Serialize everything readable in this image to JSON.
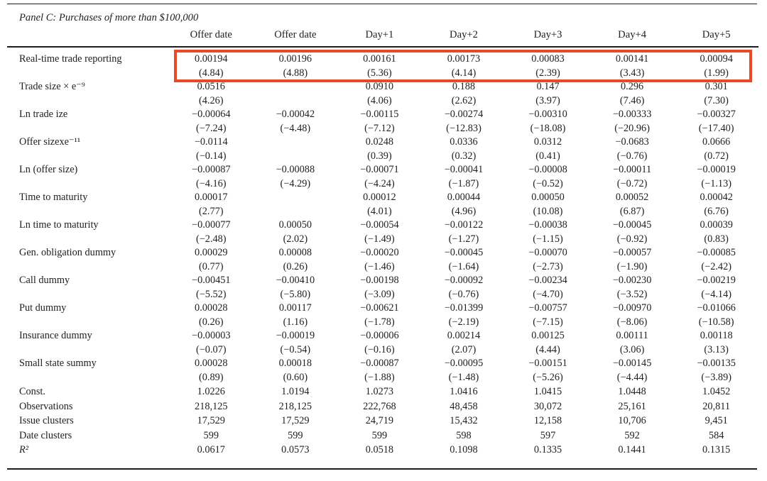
{
  "table": {
    "panel_title": "Panel C: Purchases of more than $100,000",
    "columns": [
      "Offer date",
      "Offer date",
      "Day+1",
      "Day+2",
      "Day+3",
      "Day+4",
      "Day+5"
    ],
    "rows": [
      {
        "label": "Real-time trade reporting",
        "highlight": true,
        "coef": [
          "0.00194",
          "0.00196",
          "0.00161",
          "0.00173",
          "0.00083",
          "0.00141",
          "0.00094"
        ],
        "tstat": [
          "(4.84)",
          "(4.88)",
          "(5.36)",
          "(4.14)",
          "(2.39)",
          "(3.43)",
          "(1.99)"
        ]
      },
      {
        "label": "Trade size × e⁻⁹",
        "coef": [
          "0.0516",
          "",
          "0.0910",
          "0.188",
          "0.147",
          "0.296",
          "0.301"
        ],
        "tstat": [
          "(4.26)",
          "",
          "(4.06)",
          "(2.62)",
          "(3.97)",
          "(7.46)",
          "(7.30)"
        ]
      },
      {
        "label": "Ln trade ize",
        "coef": [
          "−0.00064",
          "−0.00042",
          "−0.00115",
          "−0.00274",
          "−0.00310",
          "−0.00333",
          "−0.00327"
        ],
        "tstat": [
          "(−7.24)",
          "(−4.48)",
          "(−7.12)",
          "(−12.83)",
          "(−18.08)",
          "(−20.96)",
          "(−17.40)"
        ]
      },
      {
        "label": "Offer sizexe⁻¹¹",
        "coef": [
          "−0.0114",
          "",
          "0.0248",
          "0.0336",
          "0.0312",
          "−0.0683",
          "0.0666"
        ],
        "tstat": [
          "(−0.14)",
          "",
          "(0.39)",
          "(0.32)",
          "(0.41)",
          "(−0.76)",
          "(0.72)"
        ]
      },
      {
        "label": "Ln (offer size)",
        "coef": [
          "−0.00087",
          "−0.00088",
          "−0.00071",
          "−0.00041",
          "−0.00008",
          "−0.00011",
          "−0.00019"
        ],
        "tstat": [
          "(−4.16)",
          "(−4.29)",
          "(−4.24)",
          "(−1.87)",
          "(−0.52)",
          "(−0.72)",
          "(−1.13)"
        ]
      },
      {
        "label": "Time to maturity",
        "coef": [
          "0.00017",
          "",
          "0.00012",
          "0.00044",
          "0.00050",
          "0.00052",
          "0.00042"
        ],
        "tstat": [
          "(2.77)",
          "",
          "(4.01)",
          "(4.96)",
          "(10.08)",
          "(6.87)",
          "(6.76)"
        ]
      },
      {
        "label": "Ln time to maturity",
        "coef": [
          "−0.00077",
          "0.00050",
          "−0.00054",
          "−0.00122",
          "−0.00038",
          "−0.00045",
          "0.00039"
        ],
        "tstat": [
          "(−2.48)",
          "(2.02)",
          "(−1.49)",
          "(−1.27)",
          "(−1.15)",
          "(−0.92)",
          "(0.83)"
        ]
      },
      {
        "label": "Gen. obligation dummy",
        "coef": [
          "0.00029",
          "0.00008",
          "−0.00020",
          "−0.00045",
          "−0.00070",
          "−0.00057",
          "−0.00085"
        ],
        "tstat": [
          "(0.77)",
          "(0.26)",
          "(−1.46)",
          "(−1.64)",
          "(−2.73)",
          "(−1.90)",
          "(−2.42)"
        ]
      },
      {
        "label": "Call dummy",
        "coef": [
          "−0.00451",
          "−0.00410",
          "−0.00198",
          "−0.00092",
          "−0.00234",
          "−0.00230",
          "−0.00219"
        ],
        "tstat": [
          "(−5.52)",
          "(−5.80)",
          "(−3.09)",
          "(−0.76)",
          "(−4.70)",
          "(−3.52)",
          "(−4.14)"
        ]
      },
      {
        "label": "Put dummy",
        "coef": [
          "0.00028",
          "0.00117",
          "−0.00621",
          "−0.01399",
          "−0.00757",
          "−0.00970",
          "−0.01066"
        ],
        "tstat": [
          "(0.26)",
          "(1.16)",
          "(−1.78)",
          "(−2.19)",
          "(−7.15)",
          "(−8.06)",
          "(−10.58)"
        ]
      },
      {
        "label": "Insurance dummy",
        "coef": [
          "−0.00003",
          "−0.00019",
          "−0.00006",
          "0.00214",
          "0.00125",
          "0.00111",
          "0.00118"
        ],
        "tstat": [
          "(−0.07)",
          "(−0.54)",
          "(−0.16)",
          "(2.07)",
          "(4.44)",
          "(3.06)",
          "(3.13)"
        ]
      },
      {
        "label": "Small state summy",
        "coef": [
          "0.00028",
          "0.00018",
          "−0.00087",
          "−0.00095",
          "−0.00151",
          "−0.00145",
          "−0.00135"
        ],
        "tstat": [
          "(0.89)",
          "(0.60)",
          "(−1.88)",
          "(−1.48)",
          "(−5.26)",
          "(−4.44)",
          "(−3.89)"
        ]
      }
    ],
    "single_rows": [
      {
        "label": "Const.",
        "values": [
          "1.0226",
          "1.0194",
          "1.0273",
          "1.0416",
          "1.0415",
          "1.0448",
          "1.0452"
        ]
      },
      {
        "label": "Observations",
        "values": [
          "218,125",
          "218,125",
          "222,768",
          "48,458",
          "30,072",
          "25,161",
          "20,811"
        ]
      },
      {
        "label": "Issue clusters",
        "values": [
          "17,529",
          "17,529",
          "24,719",
          "15,432",
          "12,158",
          "10,706",
          "9,451"
        ]
      },
      {
        "label": "Date clusters",
        "values": [
          "599",
          "599",
          "599",
          "598",
          "597",
          "592",
          "584"
        ]
      },
      {
        "label": "R²",
        "values": [
          "0.0617",
          "0.0573",
          "0.0518",
          "0.1098",
          "0.1335",
          "0.1441",
          "0.1315"
        ],
        "label_italic": true
      }
    ],
    "highlight_color": "#e84a27"
  }
}
